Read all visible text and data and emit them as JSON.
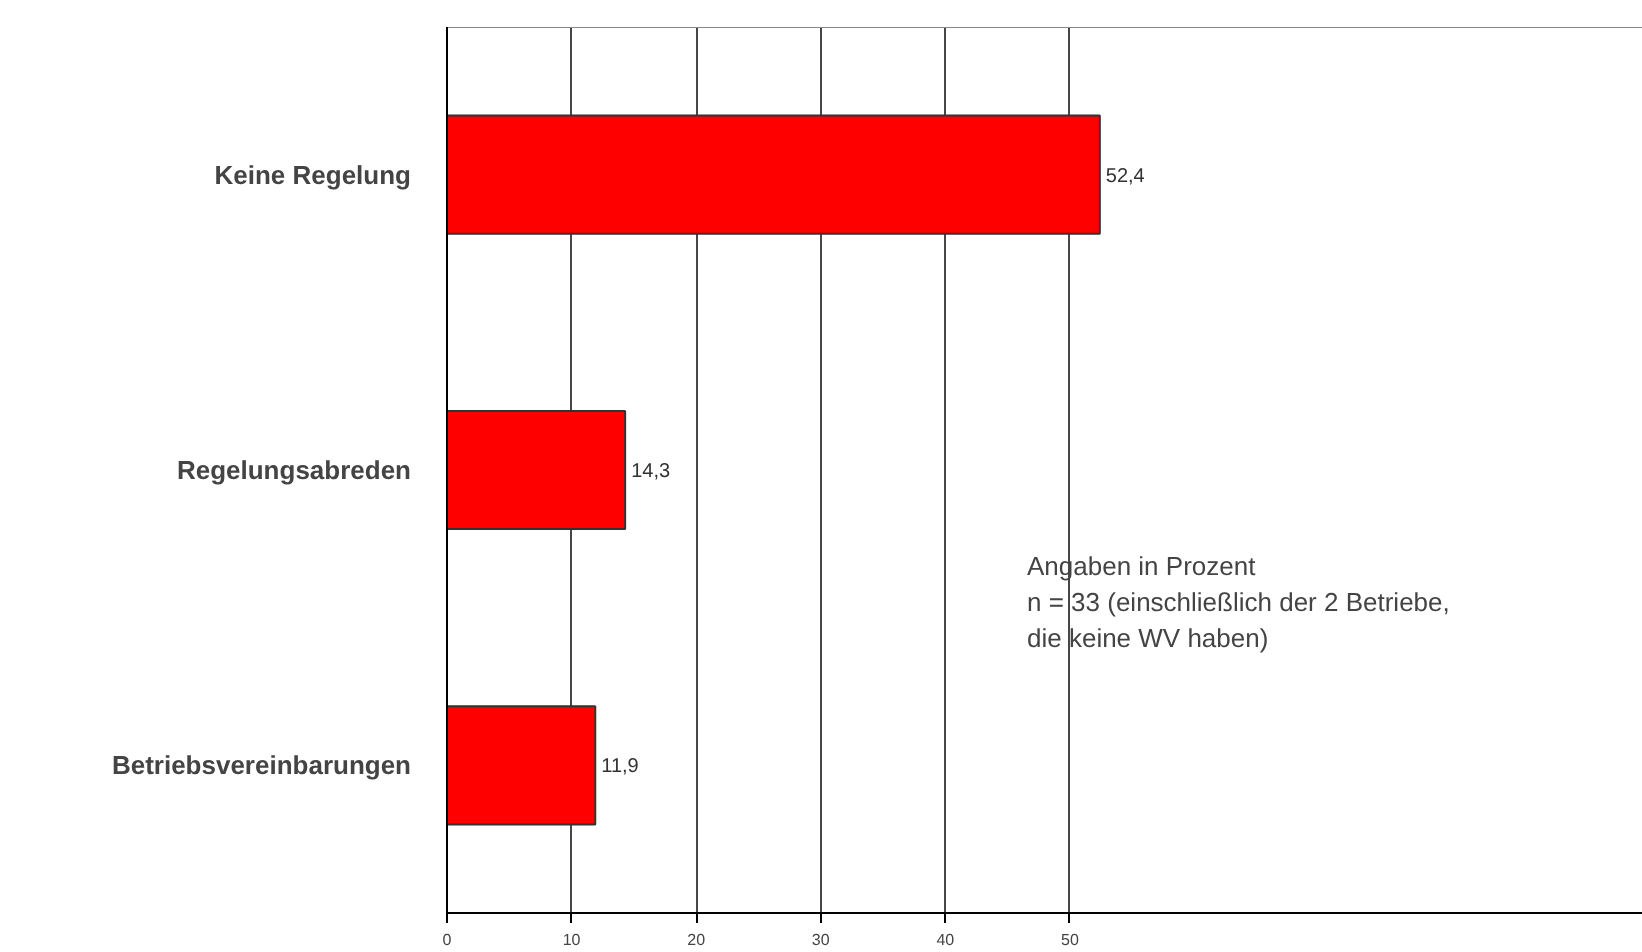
{
  "chart_data": {
    "type": "bar",
    "orientation": "horizontal",
    "categories": [
      "Keine Regelung",
      "Regelungsabreden",
      "Betriebsvereinbarungen"
    ],
    "values": [
      52.4,
      14.3,
      11.9
    ],
    "value_labels": [
      "52,4",
      "14,3",
      "11,9"
    ],
    "color": "#ff0000",
    "xlim": [
      0,
      96
    ],
    "xticks": [
      0,
      10,
      20,
      30,
      40,
      50
    ],
    "grid": "x",
    "annotations": [
      "Angaben in Prozent\nn = 33 (einschließlich der 2 Betriebe,\ndie keine WV haben)"
    ]
  }
}
